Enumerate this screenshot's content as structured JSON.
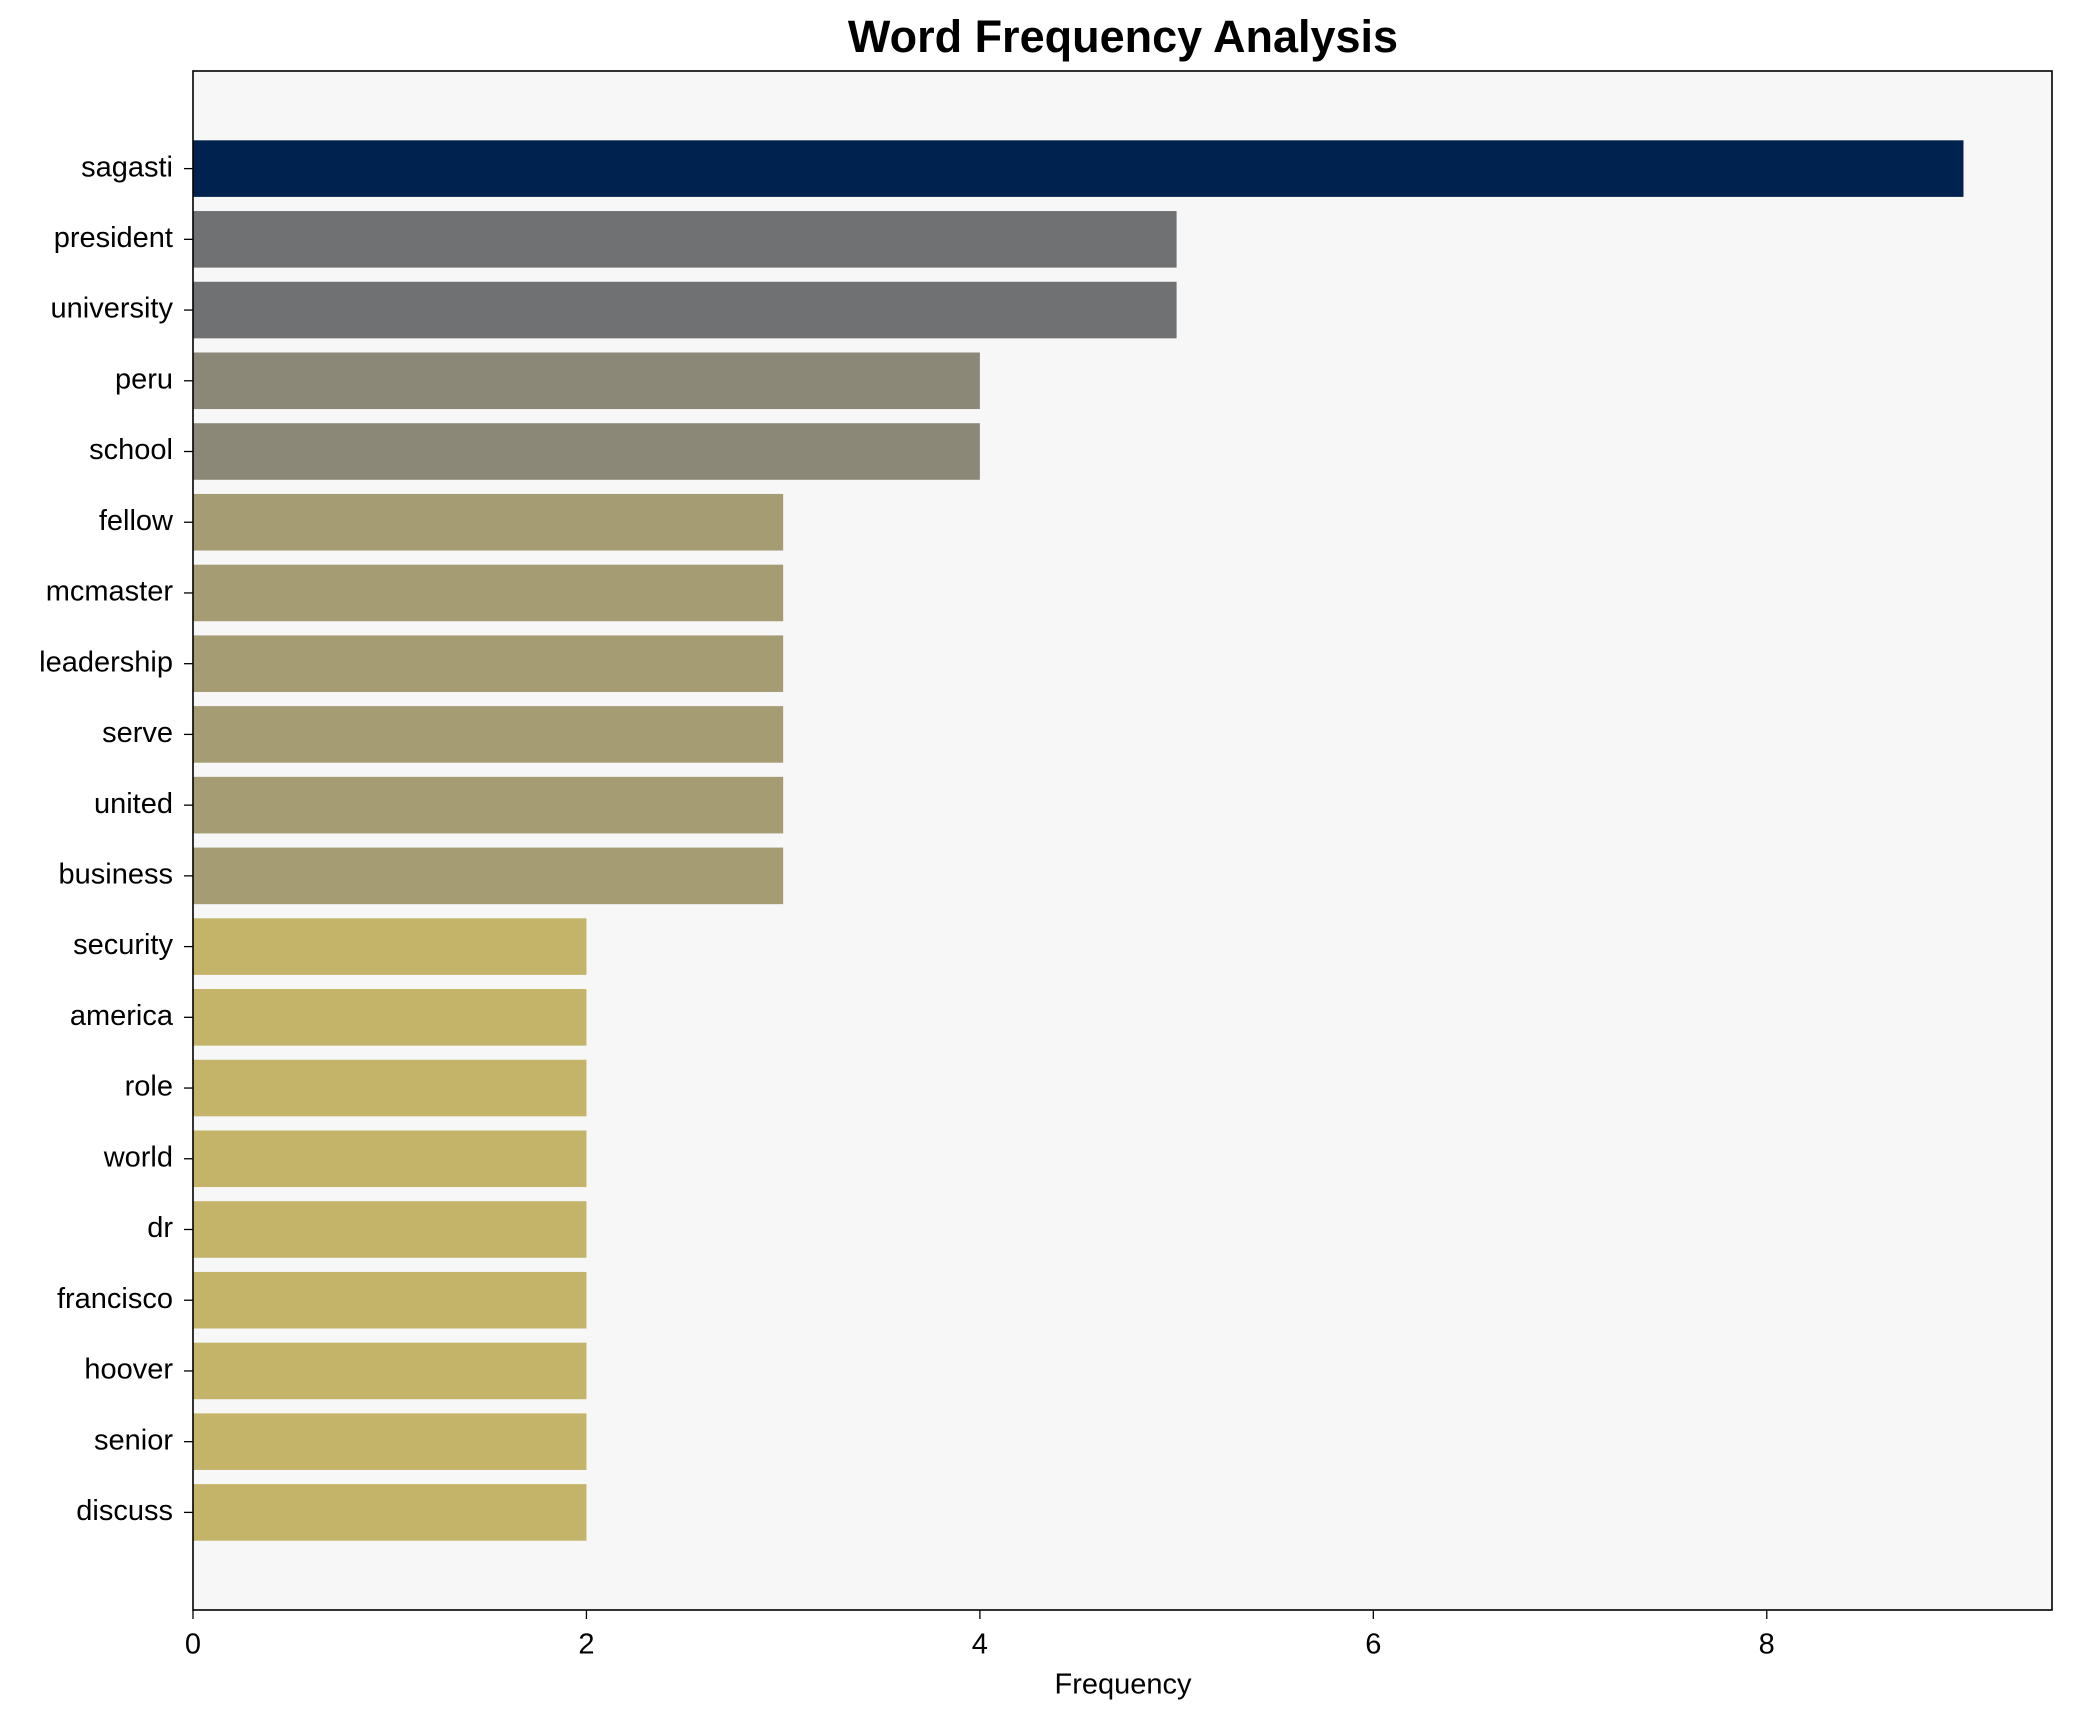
{
  "chart_data": {
    "type": "barh",
    "title": "Word Frequency Analysis",
    "x_label": "Frequency",
    "categories": [
      "sagasti",
      "president",
      "university",
      "peru",
      "school",
      "fellow",
      "mcmaster",
      "leadership",
      "serve",
      "united",
      "business",
      "security",
      "america",
      "role",
      "world",
      "dr",
      "francisco",
      "hoover",
      "senior",
      "discuss"
    ],
    "values": [
      9,
      5,
      5,
      4,
      4,
      3,
      3,
      3,
      3,
      3,
      3,
      2,
      2,
      2,
      2,
      2,
      2,
      2,
      2,
      2
    ],
    "colors": [
      "#00224e",
      "#707173",
      "#707173",
      "#8b8878",
      "#8b8878",
      "#a59c74",
      "#a59c74",
      "#a59c74",
      "#a59c74",
      "#a59c74",
      "#a59c74",
      "#c4b46a",
      "#c4b46a",
      "#c4b46a",
      "#c4b46a",
      "#c4b46a",
      "#c4b46a",
      "#c4b46a",
      "#c4b46a",
      "#c4b46a"
    ],
    "xlim": [
      0,
      9.45
    ],
    "xticks": [
      0,
      2,
      4,
      6,
      8
    ],
    "grid": false
  }
}
